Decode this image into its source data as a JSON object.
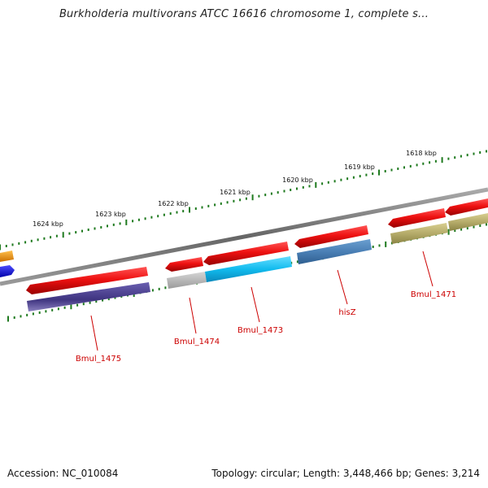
{
  "title": "Burkholderia multivorans ATCC 16616 chromosome 1, complete s...",
  "footer": {
    "accession_label": "Accession:",
    "accession": "NC_010084",
    "topology_text": "Topology: circular; Length: 3,448,466 bp; Genes: 3,214"
  },
  "colors": {
    "backbone": "#777777",
    "tick": "#1f7a1f",
    "forward": "#ee1111",
    "gene_label": "#cc0000"
  },
  "kbp_labels": [
    "1618 kbp",
    "1619 kbp",
    "1620 kbp",
    "1621 kbp",
    "1622 kbp",
    "1623 kbp",
    "1624 kbp"
  ],
  "gene_labels": [
    "Bmul_1471",
    "hisZ",
    "Bmul_1473",
    "Bmul_1474",
    "Bmul_1475"
  ],
  "features": [
    {
      "strand": "forward",
      "color": "#ee1111"
    },
    {
      "strand": "forward",
      "color": "#ee1111"
    },
    {
      "strand": "forward",
      "color": "#ee1111"
    },
    {
      "strand": "forward",
      "color": "#ee1111"
    },
    {
      "strand": "forward",
      "color": "#ee1111"
    },
    {
      "strand": "forward",
      "color": "#ee1111"
    },
    {
      "strand": "forward",
      "color": "#ff9900"
    },
    {
      "strand": "reverse",
      "color": "#1111ee"
    },
    {
      "strand": "reverse",
      "color": "#4b3f8a"
    },
    {
      "strand": "reverse",
      "color": "#b0b0b0"
    },
    {
      "strand": "reverse",
      "color": "#11bbee"
    },
    {
      "strand": "reverse",
      "color": "#4a7fb5"
    },
    {
      "strand": "reverse",
      "color": "#b5ab6a"
    },
    {
      "strand": "reverse",
      "color": "#b5ab6a"
    }
  ]
}
